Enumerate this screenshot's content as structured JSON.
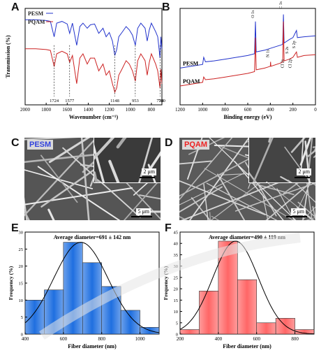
{
  "panels": {
    "A": "A",
    "B": "B",
    "C": "C",
    "D": "D",
    "E": "E",
    "F": "F"
  },
  "chart_data": [
    {
      "id": "A",
      "type": "line",
      "xlabel": "Wavenumber (cm⁻¹)",
      "ylabel": "Transmission (%)",
      "xlim": [
        2000,
        700
      ],
      "x_ticks": [
        2000,
        1800,
        1600,
        1400,
        1200,
        1000,
        800
      ],
      "series": [
        {
          "name": "PESM",
          "color": "#2233cc",
          "points": [
            [
              2000,
              0.1
            ],
            [
              1900,
              0.1
            ],
            [
              1800,
              0.11
            ],
            [
              1760,
              0.12
            ],
            [
              1724,
              0.3
            ],
            [
              1700,
              0.14
            ],
            [
              1650,
              0.12
            ],
            [
              1600,
              0.15
            ],
            [
              1577,
              0.26
            ],
            [
              1550,
              0.14
            ],
            [
              1510,
              0.4
            ],
            [
              1480,
              0.18
            ],
            [
              1450,
              0.14
            ],
            [
              1410,
              0.2
            ],
            [
              1380,
              0.16
            ],
            [
              1340,
              0.15
            ],
            [
              1300,
              0.26
            ],
            [
              1260,
              0.2
            ],
            [
              1230,
              0.3
            ],
            [
              1200,
              0.25
            ],
            [
              1170,
              0.35
            ],
            [
              1148,
              0.52
            ],
            [
              1130,
              0.45
            ],
            [
              1110,
              0.3
            ],
            [
              1080,
              0.25
            ],
            [
              1040,
              0.18
            ],
            [
              1010,
              0.22
            ],
            [
              980,
              0.28
            ],
            [
              953,
              0.4
            ],
            [
              930,
              0.2
            ],
            [
              900,
              0.14
            ],
            [
              860,
              0.2
            ],
            [
              840,
              0.35
            ],
            [
              820,
              0.22
            ],
            [
              800,
              0.14
            ],
            [
              760,
              0.24
            ],
            [
              740,
              0.3
            ],
            [
              718,
              0.55
            ],
            [
              710,
              0.3
            ],
            [
              700,
              0.45
            ]
          ]
        },
        {
          "name": "PQAM",
          "color": "#cc2222",
          "points": [
            [
              2000,
              0.44
            ],
            [
              1900,
              0.44
            ],
            [
              1800,
              0.45
            ],
            [
              1760,
              0.46
            ],
            [
              1724,
              0.65
            ],
            [
              1700,
              0.5
            ],
            [
              1650,
              0.47
            ],
            [
              1600,
              0.5
            ],
            [
              1577,
              0.6
            ],
            [
              1550,
              0.52
            ],
            [
              1510,
              0.85
            ],
            [
              1480,
              0.55
            ],
            [
              1450,
              0.5
            ],
            [
              1410,
              0.62
            ],
            [
              1380,
              0.55
            ],
            [
              1340,
              0.55
            ],
            [
              1300,
              0.7
            ],
            [
              1260,
              0.62
            ],
            [
              1230,
              0.75
            ],
            [
              1200,
              0.7
            ],
            [
              1170,
              0.85
            ],
            [
              1148,
              0.95
            ],
            [
              1130,
              0.9
            ],
            [
              1110,
              0.75
            ],
            [
              1080,
              0.68
            ],
            [
              1040,
              0.58
            ],
            [
              1010,
              0.62
            ],
            [
              980,
              0.7
            ],
            [
              953,
              0.82
            ],
            [
              930,
              0.58
            ],
            [
              900,
              0.5
            ],
            [
              860,
              0.58
            ],
            [
              840,
              0.75
            ],
            [
              820,
              0.6
            ],
            [
              800,
              0.5
            ],
            [
              760,
              0.62
            ],
            [
              740,
              0.7
            ],
            [
              718,
              0.9
            ],
            [
              710,
              0.68
            ],
            [
              700,
              0.85
            ]
          ]
        }
      ],
      "annotations": [
        "1724",
        "1577",
        "1148",
        "953",
        "718",
        "700"
      ]
    },
    {
      "id": "B",
      "type": "line",
      "xlabel": "Binding energy (eV)",
      "xlim": [
        1200,
        0
      ],
      "x_ticks": [
        1200,
        1000,
        800,
        600,
        400,
        200,
        0
      ],
      "series": [
        {
          "name": "PESM",
          "color": "#2233cc",
          "points": [
            [
              1200,
              0.62
            ],
            [
              1100,
              0.6
            ],
            [
              1000,
              0.58
            ],
            [
              990,
              0.5
            ],
            [
              975,
              0.55
            ],
            [
              900,
              0.54
            ],
            [
              800,
              0.52
            ],
            [
              700,
              0.5
            ],
            [
              600,
              0.48
            ],
            [
              540,
              0.46
            ],
            [
              532,
              0.1
            ],
            [
              525,
              0.44
            ],
            [
              450,
              0.42
            ],
            [
              400,
              0.4
            ],
            [
              300,
              0.36
            ],
            [
              290,
              0.35
            ],
            [
              284,
              0.02
            ],
            [
              278,
              0.34
            ],
            [
              230,
              0.3
            ],
            [
              200,
              0.28
            ],
            [
              168,
              0.2
            ],
            [
              160,
              0.28
            ],
            [
              100,
              0.27
            ],
            [
              0,
              0.26
            ]
          ]
        },
        {
          "name": "PQAM",
          "color": "#cc2222",
          "points": [
            [
              1200,
              0.82
            ],
            [
              1100,
              0.8
            ],
            [
              1000,
              0.78
            ],
            [
              990,
              0.72
            ],
            [
              975,
              0.75
            ],
            [
              900,
              0.74
            ],
            [
              800,
              0.72
            ],
            [
              700,
              0.7
            ],
            [
              600,
              0.68
            ],
            [
              540,
              0.66
            ],
            [
              532,
              0.28
            ],
            [
              525,
              0.64
            ],
            [
              450,
              0.62
            ],
            [
              400,
              0.6
            ],
            [
              398,
              0.55
            ],
            [
              395,
              0.6
            ],
            [
              300,
              0.56
            ],
            [
              290,
              0.55
            ],
            [
              284,
              0.1
            ],
            [
              278,
              0.54
            ],
            [
              230,
              0.52
            ],
            [
              200,
              0.5
            ],
            [
              168,
              0.44
            ],
            [
              160,
              0.5
            ],
            [
              100,
              0.48
            ],
            [
              0,
              0.47
            ]
          ]
        }
      ],
      "annotations": [
        "O 1s",
        "C 1s",
        "N 1s",
        "S 2s",
        "S 2p",
        "Cl 2s",
        "Cl 2p"
      ]
    },
    {
      "id": "E",
      "type": "bar",
      "title": "Average diameter=691 ± 142 nm",
      "xlabel": "Fiber diameter (nm)",
      "ylabel": "Frequency (%)",
      "xlim": [
        400,
        1100
      ],
      "ylim": [
        0,
        30
      ],
      "x_ticks": [
        400,
        600,
        800,
        1000
      ],
      "y_ticks": [
        0,
        5,
        10,
        15,
        20,
        25,
        30
      ],
      "bin_edges": [
        400,
        500,
        600,
        700,
        800,
        900,
        1000,
        1100
      ],
      "values": [
        10,
        13,
        27,
        21,
        14,
        7,
        2
      ],
      "fit": {
        "mean": 691,
        "sd": 142
      },
      "color": "#1f6fe0"
    },
    {
      "id": "F",
      "type": "bar",
      "title": "Average diameter=490 ± 119 nm",
      "xlabel": "Fiber diameter (nm)",
      "ylabel": "Frequency (%)",
      "xlim": [
        200,
        900
      ],
      "ylim": [
        0,
        45
      ],
      "x_ticks": [
        200,
        400,
        600,
        800
      ],
      "y_ticks": [
        0,
        5,
        10,
        15,
        20,
        25,
        30,
        35,
        40,
        45
      ],
      "bin_edges": [
        200,
        300,
        400,
        500,
        600,
        700,
        800,
        900
      ],
      "values": [
        2,
        19,
        41,
        24,
        5,
        7,
        2
      ],
      "fit": {
        "mean": 490,
        "sd": 119
      },
      "color": "#ff6666"
    }
  ],
  "sem": {
    "C": {
      "label": "PESM",
      "inset_scale": "2 μm",
      "main_scale": "5 μm",
      "label_color": "#3344dd"
    },
    "D": {
      "label": "PQAM",
      "inset_scale": "2 μm",
      "main_scale": "5 μm",
      "label_color": "#ee2222"
    }
  }
}
